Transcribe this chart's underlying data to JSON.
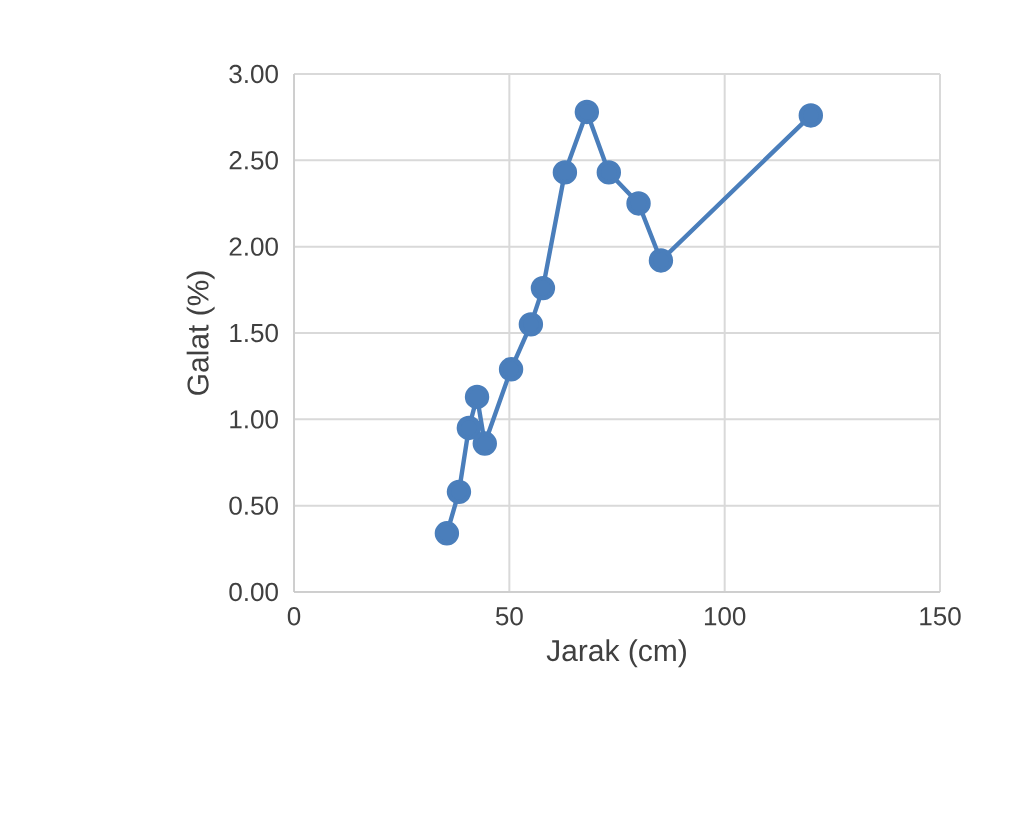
{
  "chart_data": {
    "type": "line",
    "xlabel": "Jarak (cm)",
    "ylabel": "Galat (%)",
    "x": [
      35.5,
      38.3,
      40.6,
      42.5,
      44.3,
      50.4,
      55,
      57.8,
      62.9,
      68,
      73.1,
      80,
      85.2,
      120
    ],
    "series": [
      {
        "color": "#4a7ebb",
        "values": [
          0.34,
          0.58,
          0.95,
          1.13,
          0.86,
          1.29,
          1.55,
          1.76,
          2.43,
          2.78,
          2.43,
          2.25,
          1.92,
          2.76
        ]
      }
    ],
    "xlim": [
      0,
      150
    ],
    "xticks": [
      0,
      50,
      100,
      150
    ],
    "ylim": [
      0,
      3
    ],
    "yticks": [
      {
        "value": 0,
        "label": "0.00"
      },
      {
        "value": 0.5,
        "label": "0.50"
      },
      {
        "value": 1,
        "label": "1.00"
      },
      {
        "value": 1.5,
        "label": "1.50"
      },
      {
        "value": 2,
        "label": "2.00"
      },
      {
        "value": 2.5,
        "label": "2.50"
      },
      {
        "value": 3,
        "label": "3.00"
      }
    ],
    "grid": true,
    "marker": "circle",
    "line_style": "solid"
  }
}
